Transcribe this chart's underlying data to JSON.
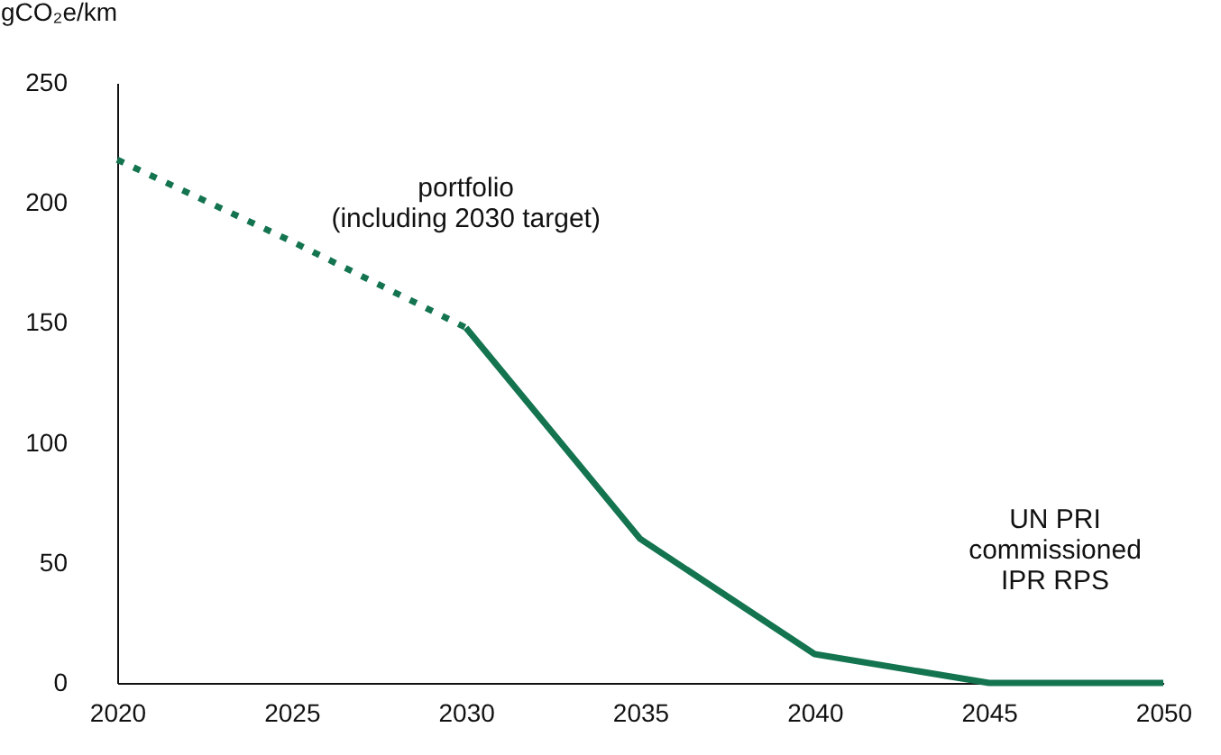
{
  "chart_data": {
    "type": "line",
    "ylabel": "gCO₂e/km",
    "series": [
      {
        "name": "portfolio\n(including 2030 target)",
        "color": "#13744f",
        "line_style": "dotted",
        "x": [
          2020,
          2025,
          2030
        ],
        "values": [
          218,
          184,
          148
        ]
      },
      {
        "color": "#13744f",
        "line_style": "solid",
        "x": [
          2030,
          2035,
          2040,
          2045,
          2050
        ],
        "values": [
          148,
          60,
          12,
          0,
          0
        ]
      }
    ],
    "xlim": [
      2020,
      2050
    ],
    "xticks": [
      2020,
      2025,
      2030,
      2035,
      2040,
      2045,
      2050
    ],
    "ylim": [
      0,
      250
    ],
    "yticks": [
      0,
      50,
      100,
      150,
      200,
      250
    ],
    "grid": false,
    "annotations": [
      "UN PRI\ncommissioned\nIPR RPS"
    ]
  }
}
